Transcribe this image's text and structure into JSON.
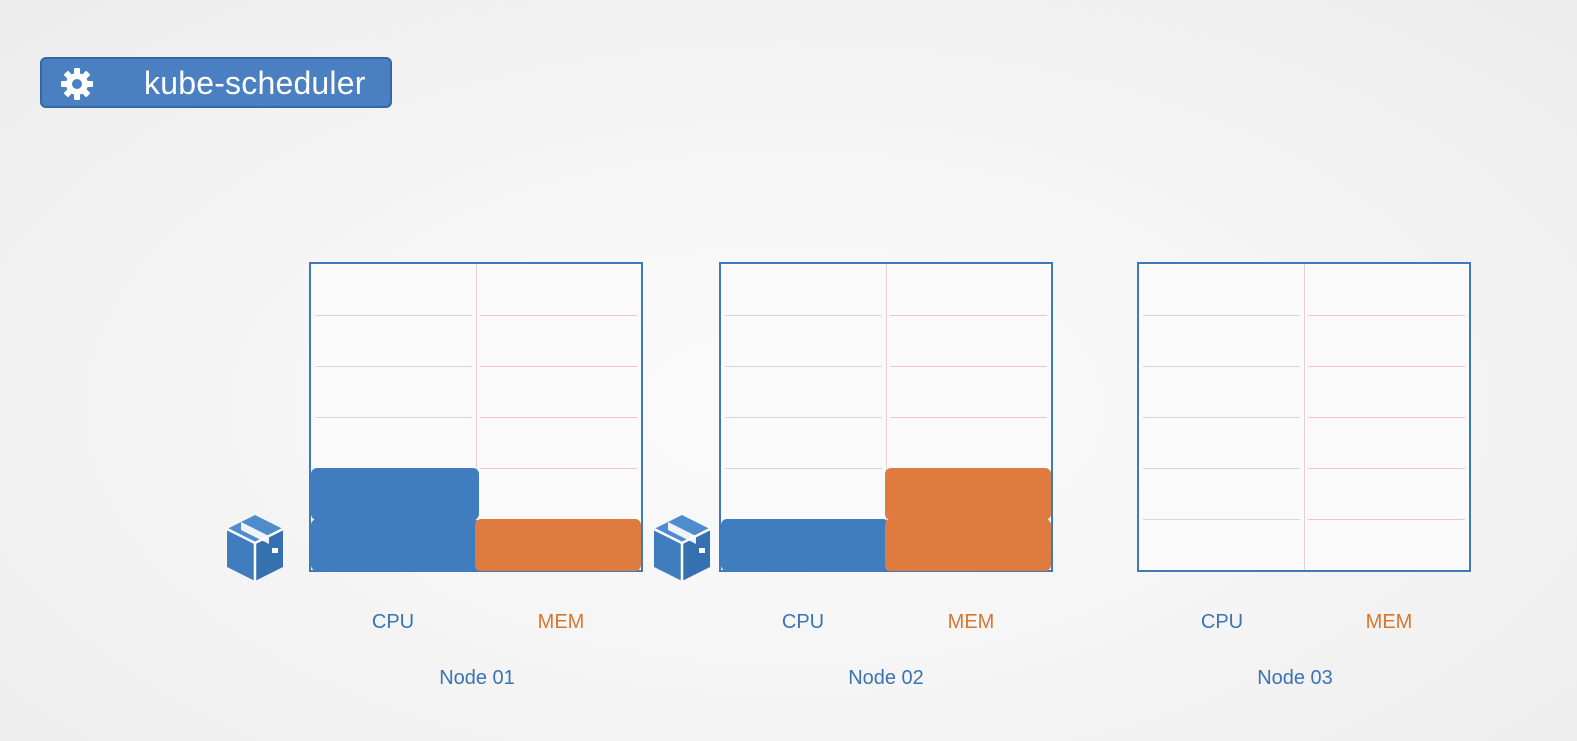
{
  "header": {
    "title": "kube-scheduler",
    "icon": "gear-icon"
  },
  "nodes": [
    {
      "name": "Node 01",
      "cpu_label": "CPU",
      "mem_label": "MEM",
      "cpu_used_slots": 2,
      "mem_used_slots": 1,
      "total_slots": 6
    },
    {
      "name": "Node 02",
      "cpu_label": "CPU",
      "mem_label": "MEM",
      "cpu_used_slots": 1,
      "mem_used_slots": 2,
      "total_slots": 6
    },
    {
      "name": "Node 03",
      "cpu_label": "CPU",
      "mem_label": "MEM",
      "cpu_used_slots": 0,
      "mem_used_slots": 0,
      "total_slots": 6
    }
  ],
  "pods": [
    {
      "icon": "pod-cube-icon",
      "next_to": "Node 01"
    },
    {
      "icon": "pod-cube-icon",
      "next_to": "Node 02"
    }
  ],
  "colors": {
    "cpu": "#3f7dbe",
    "mem": "#df7b3f",
    "badge": "#4a80c1"
  }
}
